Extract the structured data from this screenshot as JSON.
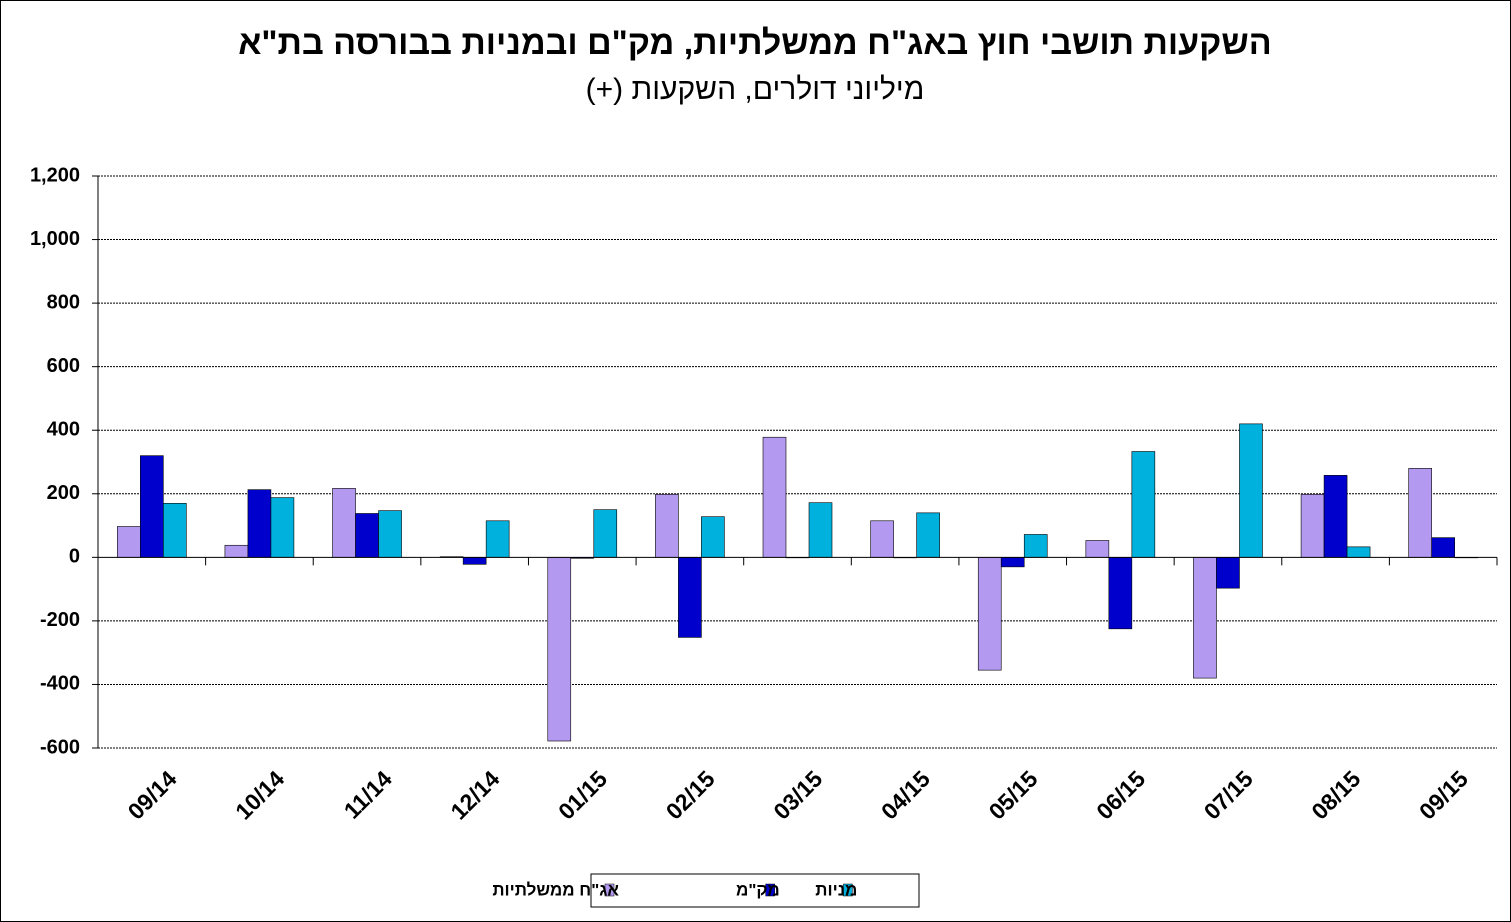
{
  "chart_data": {
    "type": "bar",
    "title": "השקעות תושבי חוץ באג\"ח ממשלתיות, מק\"ם ובמניות בבורסה בת\"א",
    "subtitle": "מיליוני דולרים, השקעות (+)",
    "categories": [
      "09/14",
      "10/14",
      "11/14",
      "12/14",
      "01/15",
      "02/15",
      "03/15",
      "04/15",
      "05/15",
      "06/15",
      "07/15",
      "08/15",
      "09/15"
    ],
    "series": [
      {
        "name": "אג\"ח ממשלתיות",
        "color": "#b39af0",
        "values": [
          97,
          38,
          217,
          2,
          -578,
          198,
          378,
          115,
          -355,
          53,
          -380,
          198,
          280
        ]
      },
      {
        "name": "מק\"מ",
        "color": "#0000cc",
        "values": [
          320,
          213,
          138,
          -22,
          -3,
          -252,
          0,
          0,
          -30,
          -225,
          -97,
          258,
          62
        ]
      },
      {
        "name": "מניות",
        "color": "#00b0dd",
        "values": [
          170,
          188,
          147,
          115,
          150,
          128,
          172,
          140,
          72,
          333,
          420,
          33,
          0
        ]
      }
    ],
    "ylim": [
      -600,
      1200
    ],
    "yticks": [
      -600,
      -400,
      -200,
      0,
      200,
      400,
      600,
      800,
      {
        "value": 1000,
        "label": "1,000"
      },
      {
        "value": 1200,
        "label": "1,200"
      }
    ],
    "grid": true
  }
}
